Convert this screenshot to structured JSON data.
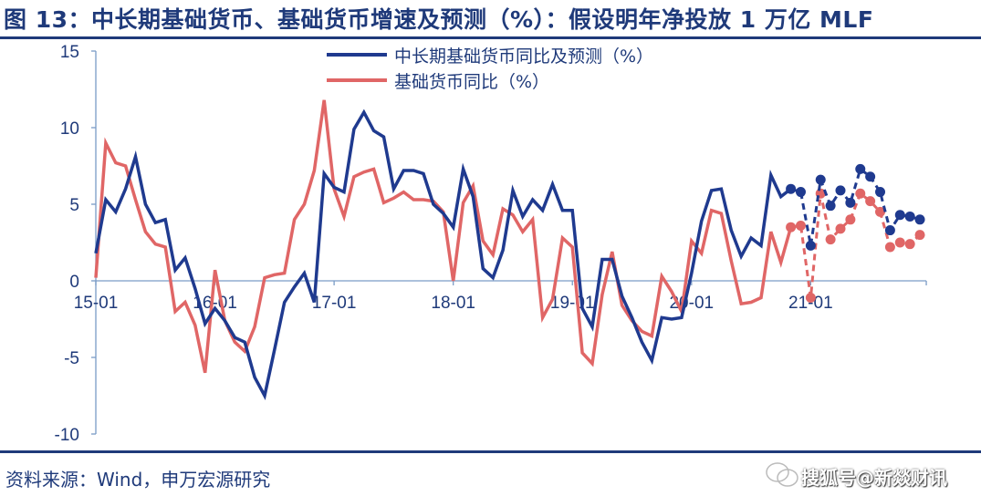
{
  "header": {
    "title": "图 13：中长期基础货币、基础货币增速及预测（%）：假设明年净投放 1 万亿 MLF"
  },
  "footer": {
    "source": "资料来源：Wind，申万宏源研究",
    "watermark": "搜狐号@新燚财讯"
  },
  "colors": {
    "title": "#1f3a7a",
    "series_blue": "#1f3a8f",
    "series_red": "#e06666",
    "axis": "#7a9cc6"
  },
  "chart_data": {
    "type": "line",
    "title": "中长期基础货币、基础货币增速及预测（%）：假设明年净投放 1 万亿 MLF",
    "xlabel": "",
    "ylabel": "",
    "ylim": [
      -10,
      15
    ],
    "yticks": [
      15,
      10,
      5,
      0,
      -5,
      -10
    ],
    "xtick_labels": [
      "15-01",
      "16-01",
      "17-01",
      "18-01",
      "19-01",
      "20-01",
      "21-01"
    ],
    "x_start": "2015-01",
    "x_end": "2021-12",
    "frequency": "monthly",
    "forecast_start_index": 70,
    "grid": false,
    "legend_position": "top-center",
    "series": [
      {
        "name": "中长期基础货币同比及预测（%）",
        "color": "#1f3a8f",
        "values": [
          1.8,
          5.3,
          4.5,
          6.0,
          8.1,
          5.0,
          3.8,
          4.0,
          0.7,
          1.5,
          -0.5,
          -2.8,
          -1.8,
          -2.6,
          -3.7,
          -4.0,
          -6.3,
          -7.5,
          -4.5,
          -1.4,
          -0.4,
          0.5,
          -1.4,
          7.0,
          6.1,
          5.8,
          9.9,
          11.0,
          9.8,
          9.4,
          6.0,
          7.2,
          7.2,
          7.0,
          5.0,
          4.4,
          3.5,
          7.3,
          5.5,
          0.8,
          0.2,
          2.0,
          5.9,
          4.2,
          5.3,
          4.6,
          6.3,
          4.6,
          4.6,
          -1.8,
          -3.0,
          1.4,
          1.4,
          -1.0,
          -2.4,
          -4.0,
          -5.2,
          -2.4,
          -2.5,
          -2.4,
          0.5,
          3.9,
          5.9,
          6.0,
          3.3,
          1.6,
          2.8,
          2.3,
          6.9,
          5.5,
          6.0,
          5.8,
          2.3,
          6.6,
          4.9,
          5.9,
          5.1,
          7.3,
          6.8,
          5.8,
          3.3,
          4.3,
          4.2,
          4.0
        ]
      },
      {
        "name": "基础货币同比（%）",
        "color": "#e06666",
        "values": [
          0.2,
          9.0,
          7.7,
          7.5,
          5.3,
          3.2,
          2.4,
          2.2,
          -2.0,
          -1.4,
          -2.9,
          -6.0,
          0.7,
          -2.6,
          -4.0,
          -4.6,
          -3.0,
          0.2,
          0.4,
          0.5,
          4.0,
          5.0,
          7.2,
          11.8,
          6.0,
          4.2,
          6.8,
          7.1,
          7.3,
          5.1,
          5.4,
          5.8,
          5.3,
          5.3,
          5.2,
          4.5,
          0.0,
          5.1,
          6.2,
          2.6,
          1.7,
          4.7,
          4.3,
          3.2,
          4.0,
          -2.4,
          -1.2,
          2.8,
          2.2,
          -4.7,
          -5.4,
          -0.9,
          1.9,
          -1.6,
          -2.6,
          -3.3,
          -3.6,
          0.3,
          -0.7,
          -2.0,
          2.6,
          1.8,
          4.6,
          4.4,
          1.3,
          -1.5,
          -1.4,
          -1.1,
          3.2,
          1.2,
          3.5,
          3.6,
          -1.1,
          5.7,
          2.7,
          3.4,
          4.0,
          5.7,
          5.2,
          4.5,
          2.2,
          2.5,
          2.4,
          3.0
        ]
      }
    ]
  }
}
